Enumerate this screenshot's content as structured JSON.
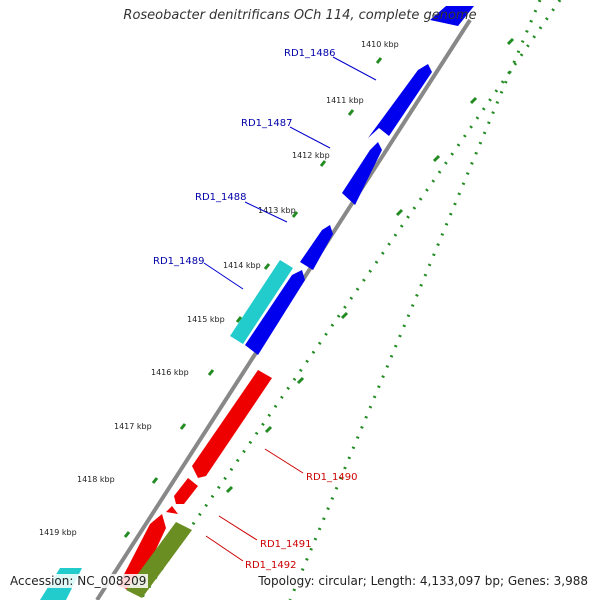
{
  "title": "Roseobacter denitrificans OCh 114, complete genome",
  "footer": {
    "accession": "Accession: NC_008209",
    "stats": "Topology: circular; Length: 4,133,097 bp; Genes: 3,988"
  },
  "colors": {
    "forward_gene": "#0000ee",
    "reverse_gene": "#ee0000",
    "cyan_feature": "#22cccc",
    "olive_feature": "#6b8e23",
    "backbone": "#888888",
    "tick_dots": "#228b22",
    "label_blue": "#0000aa",
    "label_red": "#cc0000"
  },
  "kbp_labels": [
    "1410 kbp",
    "1411 kbp",
    "1412 kbp",
    "1413 kbp",
    "1414 kbp",
    "1415 kbp",
    "1416 kbp",
    "1417 kbp",
    "1418 kbp",
    "1419 kbp"
  ],
  "genes": [
    {
      "label": "RD1_1486",
      "strand": "forward"
    },
    {
      "label": "RD1_1487",
      "strand": "forward"
    },
    {
      "label": "RD1_1488",
      "strand": "forward"
    },
    {
      "label": "RD1_1489",
      "strand": "forward"
    },
    {
      "label": "RD1_1490",
      "strand": "reverse"
    },
    {
      "label": "RD1_1491",
      "strand": "reverse"
    },
    {
      "label": "RD1_1492",
      "strand": "reverse"
    }
  ]
}
